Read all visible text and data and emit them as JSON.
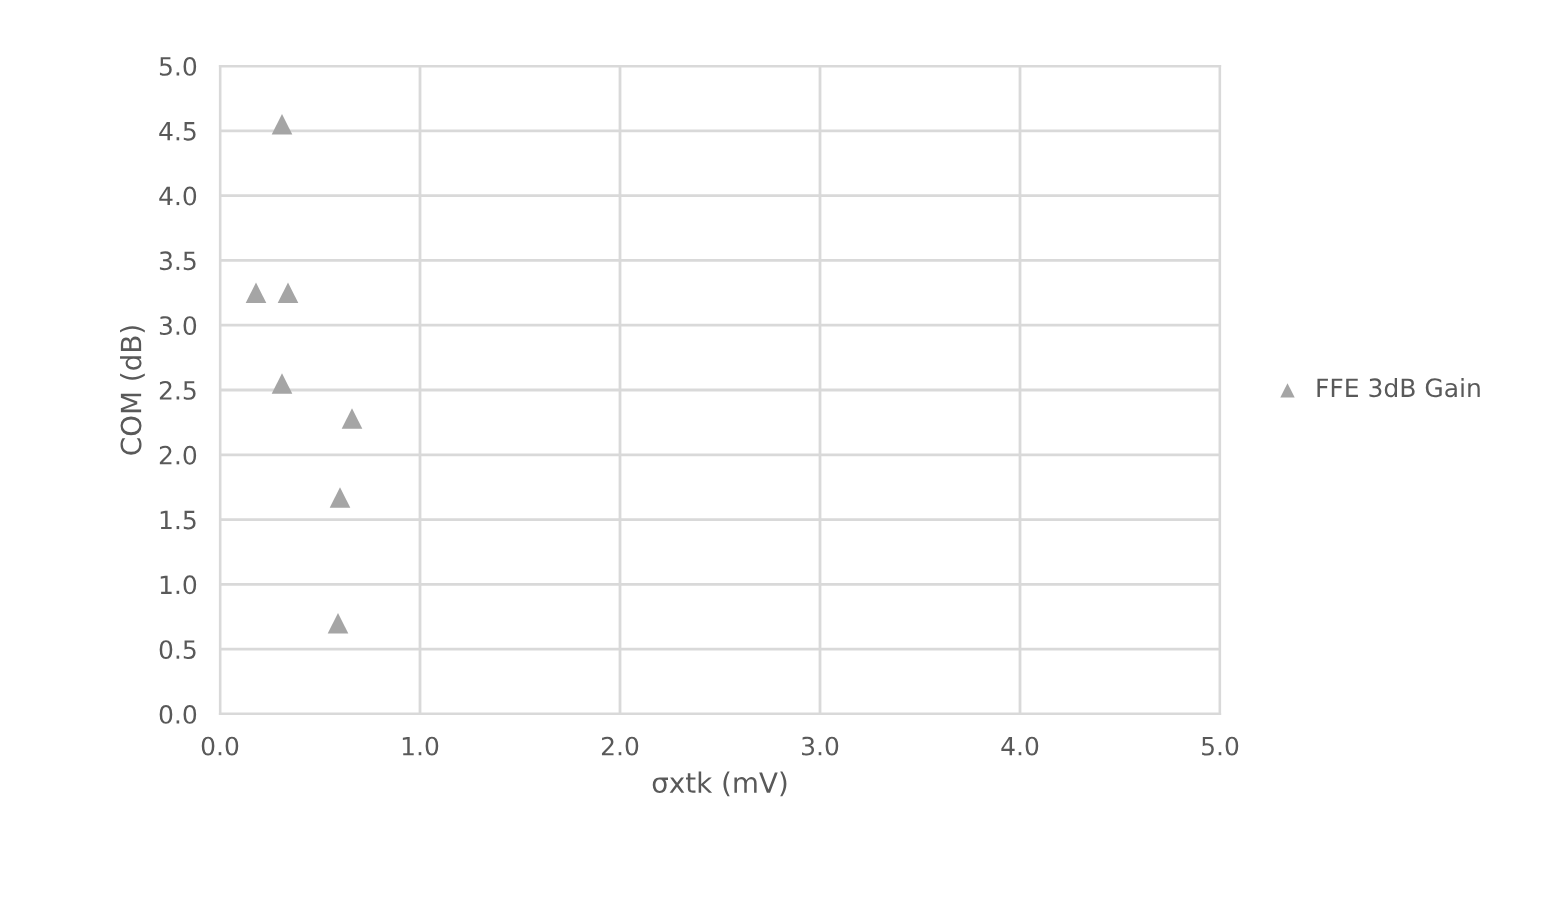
{
  "chart_data": {
    "type": "scatter",
    "xlabel": "σxtk (mV)",
    "ylabel": "COM (dB)",
    "series": [
      {
        "name": "FFE 3dB Gain",
        "color": "#a5a5a5",
        "x": [
          0.31,
          0.18,
          0.34,
          0.31,
          0.66,
          0.6,
          0.59
        ],
        "values": [
          4.55,
          3.25,
          3.25,
          2.55,
          2.28,
          1.67,
          0.7
        ]
      }
    ],
    "xlim": [
      0,
      5
    ],
    "ylim": [
      0,
      5
    ],
    "xticks": [
      {
        "value": 0,
        "label": "0.0"
      },
      {
        "value": 1,
        "label": "1.0"
      },
      {
        "value": 2,
        "label": "2.0"
      },
      {
        "value": 3,
        "label": "3.0"
      },
      {
        "value": 4,
        "label": "4.0"
      },
      {
        "value": 5,
        "label": "5.0"
      }
    ],
    "yticks": [
      {
        "value": 0,
        "label": "0.0"
      },
      {
        "value": 0.5,
        "label": "0.5"
      },
      {
        "value": 1,
        "label": "1.0"
      },
      {
        "value": 1.5,
        "label": "1.5"
      },
      {
        "value": 2,
        "label": "2.0"
      },
      {
        "value": 2.5,
        "label": "2.5"
      },
      {
        "value": 3,
        "label": "3.0"
      },
      {
        "value": 3.5,
        "label": "3.5"
      },
      {
        "value": 4,
        "label": "4.0"
      },
      {
        "value": 4.5,
        "label": "4.5"
      },
      {
        "value": 5,
        "label": "5.0"
      }
    ],
    "grid": true,
    "legend": "right",
    "marker": "triangle"
  }
}
